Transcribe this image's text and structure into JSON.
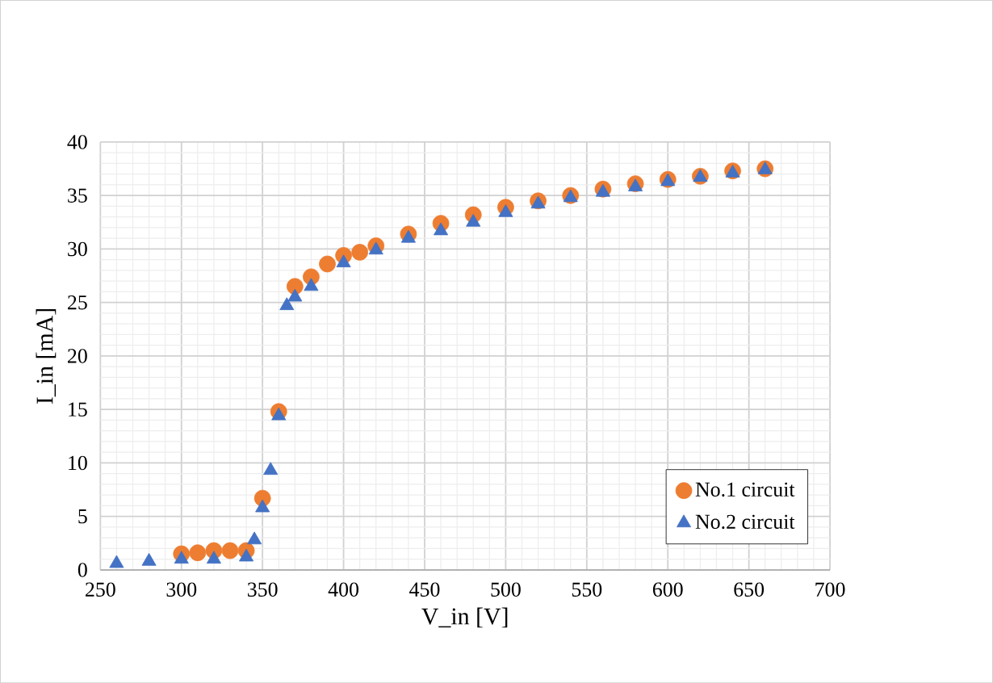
{
  "chart_data": {
    "type": "scatter",
    "xlabel": "V_in [V]",
    "ylabel": "I_in [mA]",
    "xlim": [
      250,
      700
    ],
    "ylim": [
      0,
      40
    ],
    "xticks": [
      250,
      300,
      350,
      400,
      450,
      500,
      550,
      600,
      650,
      700
    ],
    "yticks": [
      0,
      5,
      10,
      15,
      20,
      25,
      30,
      35,
      40
    ],
    "grid": true,
    "legend": "bottom right",
    "series": [
      {
        "name": "No.1 circuit",
        "color": "#ed7d31",
        "marker": "circle",
        "x": [
          300,
          310,
          320,
          330,
          340,
          350,
          360,
          370,
          380,
          390,
          400,
          410,
          420,
          440,
          460,
          480,
          500,
          520,
          540,
          560,
          580,
          600,
          620,
          640,
          660
        ],
        "values": [
          1.5,
          1.6,
          1.8,
          1.8,
          1.8,
          6.7,
          14.8,
          26.5,
          27.4,
          28.6,
          29.4,
          29.7,
          30.3,
          31.4,
          32.4,
          33.2,
          33.9,
          34.5,
          35.0,
          35.6,
          36.1,
          36.5,
          36.8,
          37.3,
          37.5
        ]
      },
      {
        "name": "No.2 circuit",
        "color": "#4472c4",
        "marker": "triangle",
        "x": [
          260,
          280,
          300,
          320,
          340,
          345,
          350,
          355,
          360,
          365,
          370,
          380,
          400,
          420,
          440,
          460,
          480,
          500,
          520,
          540,
          560,
          580,
          600,
          620,
          640,
          660
        ],
        "values": [
          0.6,
          0.8,
          1.0,
          1.0,
          1.2,
          2.8,
          5.8,
          9.3,
          14.4,
          24.7,
          25.5,
          26.5,
          28.7,
          29.9,
          31.0,
          31.7,
          32.5,
          33.4,
          34.2,
          34.8,
          35.3,
          35.8,
          36.3,
          36.7,
          37.1,
          37.4
        ]
      }
    ]
  }
}
